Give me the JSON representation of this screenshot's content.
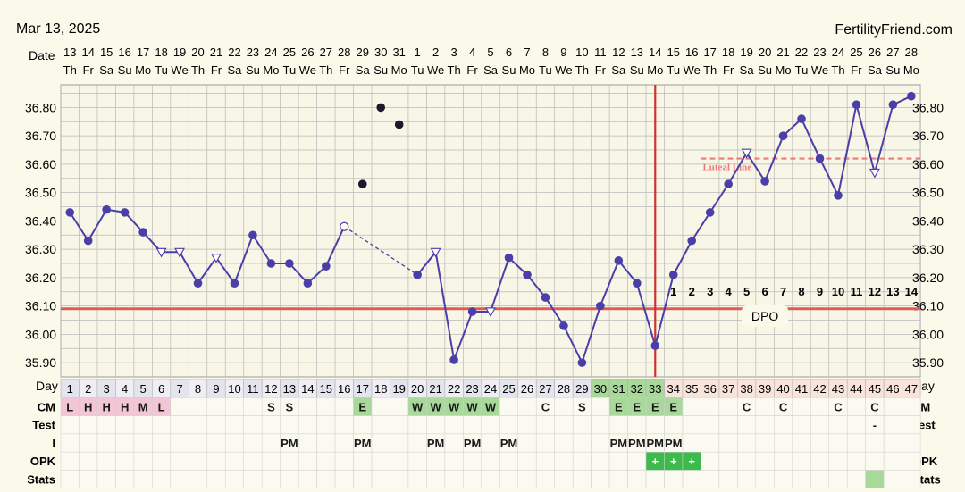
{
  "header": {
    "date": "Mar 13, 2025",
    "brand": "FertilityFriend.com",
    "date_label": "Date",
    "day_label": "Day"
  },
  "colors": {
    "line": "#4a3fa8",
    "coverline": "#e05a5a",
    "ovulation": "#cc3333",
    "luteal": "#ee7a7a",
    "cm_pink": "#f2c6d4",
    "green": "#a8d89a",
    "grid": "#b8b8b8"
  },
  "dates": [
    "13",
    "14",
    "15",
    "16",
    "17",
    "18",
    "19",
    "20",
    "21",
    "22",
    "23",
    "24",
    "25",
    "26",
    "27",
    "28",
    "29",
    "30",
    "31",
    "1",
    "2",
    "3",
    "4",
    "5",
    "6",
    "7",
    "8",
    "9",
    "10",
    "11",
    "12",
    "13",
    "14",
    "15",
    "16",
    "17",
    "18",
    "19",
    "20",
    "21",
    "22",
    "23",
    "24",
    "25",
    "26",
    "27",
    "28"
  ],
  "weekdays": [
    "Th",
    "Fr",
    "Sa",
    "Su",
    "Mo",
    "Tu",
    "We",
    "Th",
    "Fr",
    "Sa",
    "Su",
    "Mo",
    "Tu",
    "We",
    "Th",
    "Fr",
    "Sa",
    "Su",
    "Mo",
    "Tu",
    "We",
    "Th",
    "Fr",
    "Sa",
    "Su",
    "Mo",
    "Tu",
    "We",
    "Th",
    "Fr",
    "Sa",
    "Su",
    "Mo",
    "Tu",
    "We",
    "Th",
    "Fr",
    "Sa",
    "Su",
    "Mo",
    "Tu",
    "We",
    "Th",
    "Fr",
    "Sa",
    "Su",
    "Mo"
  ],
  "chart_data": {
    "type": "line",
    "title": "",
    "xlabel": "Day",
    "ylabel": "",
    "ylim": [
      35.85,
      36.88
    ],
    "yticks": [
      "35.90",
      "36.00",
      "36.10",
      "36.20",
      "36.30",
      "36.40",
      "36.50",
      "36.60",
      "36.70",
      "36.80"
    ],
    "x": [
      1,
      2,
      3,
      4,
      5,
      6,
      7,
      8,
      9,
      10,
      11,
      12,
      13,
      14,
      15,
      16,
      17,
      18,
      19,
      20,
      21,
      22,
      23,
      24,
      25,
      26,
      27,
      28,
      29,
      30,
      31,
      32,
      33,
      34,
      35,
      36,
      37,
      38,
      39,
      40,
      41,
      42,
      43,
      44,
      45,
      46,
      47
    ],
    "temps": [
      36.43,
      36.33,
      36.44,
      36.43,
      36.36,
      36.29,
      36.29,
      36.18,
      36.27,
      36.18,
      36.35,
      36.25,
      36.25,
      36.18,
      36.24,
      36.38,
      36.53,
      36.8,
      36.74,
      36.21,
      36.29,
      35.91,
      36.08,
      36.08,
      36.27,
      36.21,
      36.13,
      36.03,
      35.9,
      36.1,
      36.26,
      36.18,
      35.96,
      36.21,
      36.33,
      36.43,
      36.53,
      36.64,
      36.54,
      36.7,
      36.76,
      36.62,
      36.49,
      36.81,
      36.57,
      36.81,
      36.84
    ],
    "marker": [
      "f",
      "f",
      "f",
      "f",
      "f",
      "o",
      "o",
      "f",
      "o",
      "f",
      "f",
      "f",
      "f",
      "f",
      "f",
      "h",
      "d",
      "d",
      "d",
      "f",
      "o",
      "f",
      "f",
      "o",
      "f",
      "f",
      "f",
      "f",
      "f",
      "f",
      "f",
      "f",
      "f",
      "f",
      "f",
      "f",
      "f",
      "o",
      "f",
      "f",
      "f",
      "f",
      "f",
      "f",
      "o",
      "f",
      "f"
    ],
    "connect": [
      1,
      1,
      1,
      1,
      1,
      1,
      1,
      1,
      1,
      1,
      1,
      1,
      1,
      1,
      1,
      "d",
      0,
      0,
      0,
      1,
      1,
      1,
      1,
      1,
      1,
      1,
      1,
      1,
      1,
      1,
      1,
      1,
      1,
      1,
      1,
      1,
      1,
      1,
      1,
      1,
      1,
      1,
      1,
      1,
      1,
      1,
      1
    ],
    "coverline": 36.09,
    "ovulation_day": 33,
    "luteal_line": 36.62,
    "luteal_label": "Luteal Line",
    "luteal_start": 36,
    "dpo": [
      "1",
      "2",
      "3",
      "4",
      "5",
      "6",
      "7",
      "8",
      "9",
      "10",
      "11",
      "12",
      "13",
      "14"
    ],
    "dpo_label": "DPO",
    "rows": [
      {
        "label": "CM",
        "values": [
          "L",
          "H",
          "H",
          "H",
          "M",
          "L",
          "",
          "",
          "",
          "",
          "",
          "S",
          "S",
          "",
          "",
          "",
          "E",
          "",
          "",
          "W",
          "W",
          "W",
          "W",
          "W",
          "",
          "",
          "C",
          "",
          "S",
          "",
          "E",
          "E",
          "E",
          "E",
          "",
          "",
          "",
          "C",
          "",
          "C",
          "",
          "",
          "C",
          "",
          "C",
          "",
          ""
        ]
      },
      {
        "label": "Test",
        "values": [
          "",
          "",
          "",
          "",
          "",
          "",
          "",
          "",
          "",
          "",
          "",
          "",
          "",
          "",
          "",
          "",
          "",
          "",
          "",
          "",
          "",
          "",
          "",
          "",
          "",
          "",
          "",
          "",
          "",
          "",
          "",
          "",
          "",
          "",
          "",
          "",
          "",
          "",
          "",
          "",
          "",
          "",
          "",
          "",
          "-",
          "",
          ""
        ]
      },
      {
        "label": "I",
        "values": [
          "",
          "",
          "",
          "",
          "",
          "",
          "",
          "",
          "",
          "",
          "",
          "",
          "PM",
          "",
          "",
          "",
          "PM",
          "",
          "",
          "",
          "PM",
          "",
          "PM",
          "",
          "PM",
          "",
          "",
          "",
          "",
          "",
          "PM",
          "PM",
          "PM",
          "PM",
          "",
          "",
          "",
          "",
          "",
          "",
          "",
          "",
          "",
          "",
          "",
          "",
          ""
        ]
      },
      {
        "label": "OPK",
        "values": [
          "",
          "",
          "",
          "",
          "",
          "",
          "",
          "",
          "",
          "",
          "",
          "",
          "",
          "",
          "",
          "",
          "",
          "",
          "",
          "",
          "",
          "",
          "",
          "",
          "",
          "",
          "",
          "",
          "",
          "",
          "",
          "",
          "+",
          "+",
          "+",
          "",
          "",
          "",
          "",
          "",
          "",
          "",
          "",
          "",
          "",
          "",
          ""
        ]
      },
      {
        "label": "Stats",
        "values": [
          "",
          "",
          "",
          "",
          "",
          "",
          "",
          "",
          "",
          "",
          "",
          "",
          "",
          "",
          "",
          "",
          "",
          "",
          "",
          "",
          "",
          "",
          "",
          "",
          "",
          "",
          "",
          "",
          "",
          "",
          "",
          "",
          "",
          "",
          "",
          "",
          "",
          "",
          "",
          "",
          "",
          "",
          "",
          "",
          "",
          "",
          ""
        ]
      }
    ]
  }
}
